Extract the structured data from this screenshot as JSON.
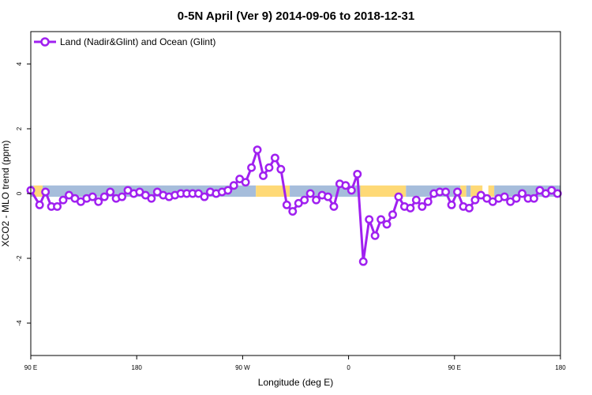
{
  "chart_data": {
    "type": "line",
    "title": "0-5N April (Ver 9)   2014-09-06 to 2018-12-31",
    "xlabel": "Longitude (deg E)",
    "ylabel": "XCO2 - MLO trend (ppm)",
    "xlim": [
      90,
      450
    ],
    "ylim": [
      -5,
      5
    ],
    "x_ticks": [
      {
        "value": 90,
        "label": "90 E"
      },
      {
        "value": 162,
        "label": "180"
      },
      {
        "value": 234,
        "label": "90 W"
      },
      {
        "value": 306,
        "label": "0"
      },
      {
        "value": 378,
        "label": "90 E"
      },
      {
        "value": 450,
        "label": "180"
      }
    ],
    "y_ticks": [
      {
        "value": -4,
        "label": "-4"
      },
      {
        "value": -2,
        "label": "-2"
      },
      {
        "value": 0,
        "label": "0"
      },
      {
        "value": 2,
        "label": "2"
      },
      {
        "value": 4,
        "label": "4"
      }
    ],
    "grid": false,
    "legend_position": "top-left",
    "surface_band": {
      "y_range": [
        -0.1,
        0.25
      ],
      "colors": {
        "ocean": "#a6bddb",
        "land": "#fed976"
      },
      "segments": [
        {
          "type": "ocean",
          "x0": 90,
          "x1": 92
        },
        {
          "type": "land",
          "x0": 92,
          "x1": 98
        },
        {
          "type": "ocean",
          "x0": 98,
          "x1": 112
        },
        {
          "type": "ocean",
          "x0": 112,
          "x1": 243
        },
        {
          "type": "land",
          "x0": 243,
          "x1": 266
        },
        {
          "type": "ocean",
          "x0": 266,
          "x1": 314
        },
        {
          "type": "land",
          "x0": 314,
          "x1": 345
        },
        {
          "type": "ocean",
          "x0": 345,
          "x1": 382
        },
        {
          "type": "land",
          "x0": 382,
          "x1": 386
        },
        {
          "type": "ocean",
          "x0": 386,
          "x1": 389
        },
        {
          "type": "land",
          "x0": 389,
          "x1": 397
        },
        {
          "type": "land",
          "x0": 401,
          "x1": 405
        },
        {
          "type": "ocean",
          "x0": 405,
          "x1": 450
        }
      ]
    },
    "series": [
      {
        "name": "Land (Nadir&Glint) and Ocean (Glint)",
        "color": "#a020f0",
        "x": [
          90,
          96,
          100,
          104,
          108,
          112,
          116,
          120,
          124,
          128,
          132,
          136,
          140,
          144,
          148,
          152,
          156,
          160,
          164,
          168,
          172,
          176,
          180,
          184,
          188,
          192,
          196,
          200,
          204,
          208,
          212,
          216,
          220,
          224,
          228,
          232,
          236,
          240,
          244,
          248,
          252,
          256,
          260,
          264,
          268,
          272,
          276,
          280,
          284,
          288,
          292,
          296,
          300,
          304,
          308,
          312,
          316,
          320,
          324,
          328,
          332,
          336,
          340,
          344,
          348,
          352,
          356,
          360,
          364,
          368,
          372,
          376,
          380,
          384,
          388,
          392,
          396,
          400,
          404,
          408,
          412,
          416,
          420,
          424,
          428,
          432,
          436,
          440,
          444,
          448
        ],
        "y": [
          0.1,
          -0.35,
          0.05,
          -0.4,
          -0.4,
          -0.2,
          -0.05,
          -0.15,
          -0.25,
          -0.15,
          -0.1,
          -0.25,
          -0.1,
          0.05,
          -0.15,
          -0.1,
          0.1,
          0.0,
          0.05,
          -0.05,
          -0.15,
          0.05,
          -0.05,
          -0.1,
          -0.05,
          0.0,
          0.0,
          0.0,
          0.0,
          -0.1,
          0.05,
          0.0,
          0.05,
          0.1,
          0.25,
          0.45,
          0.35,
          0.8,
          1.35,
          0.55,
          0.8,
          1.1,
          0.75,
          -0.35,
          -0.55,
          -0.3,
          -0.2,
          0.0,
          -0.2,
          -0.05,
          -0.1,
          -0.4,
          0.3,
          0.25,
          0.1,
          0.6,
          -2.1,
          -0.8,
          -1.3,
          -0.8,
          -0.95,
          -0.65,
          -0.1,
          -0.4,
          -0.45,
          -0.2,
          -0.4,
          -0.25,
          0.0,
          0.05,
          0.05,
          -0.35,
          0.05,
          -0.4,
          -0.45,
          -0.2,
          -0.05,
          -0.15,
          -0.25,
          -0.15,
          -0.1,
          -0.25,
          -0.15,
          0.0,
          -0.15,
          -0.15,
          0.1,
          0.0,
          0.1,
          0.0
        ]
      }
    ]
  }
}
